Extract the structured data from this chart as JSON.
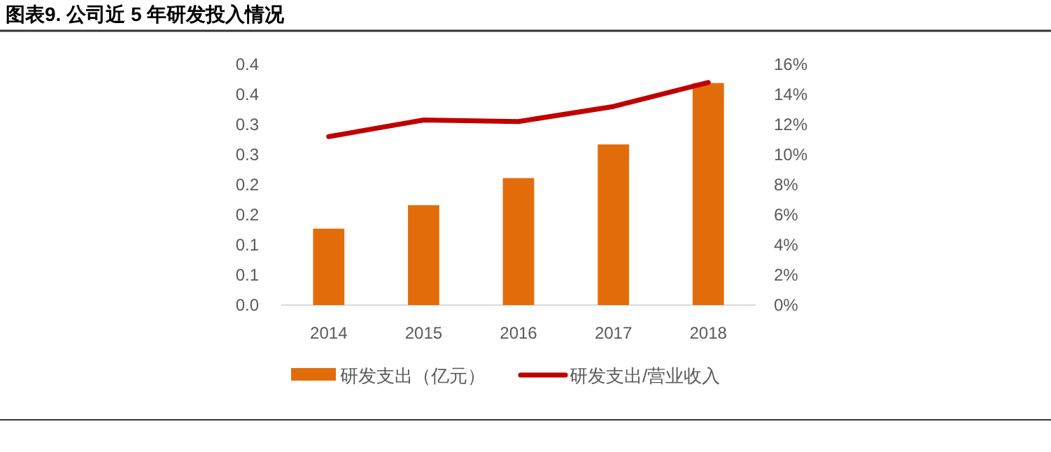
{
  "chart_data": {
    "type": "bar",
    "title": "图表9.    公司近 5 年研发投入情况",
    "categories": [
      "2014",
      "2015",
      "2016",
      "2017",
      "2018"
    ],
    "series": [
      {
        "name": "研发支出（亿元）",
        "color": "#e36c0a",
        "values": [
          0.127,
          0.166,
          0.211,
          0.267,
          0.369
        ]
      },
      {
        "name": "研发支出/营业收入",
        "type": "line",
        "axis": "y2",
        "color": "#c00000",
        "values": [
          11.2,
          12.3,
          12.2,
          13.2,
          14.8
        ]
      }
    ],
    "ylim": [
      0,
      0.4
    ],
    "yticks": [
      {
        "value": 0,
        "label": "0.0"
      },
      {
        "value": 0.05,
        "label": "0.1"
      },
      {
        "value": 0.1,
        "label": "0.1"
      },
      {
        "value": 0.15,
        "label": "0.2"
      },
      {
        "value": 0.2,
        "label": "0.2"
      },
      {
        "value": 0.25,
        "label": "0.3"
      },
      {
        "value": 0.3,
        "label": "0.3"
      },
      {
        "value": 0.35,
        "label": "0.4"
      },
      {
        "value": 0.4,
        "label": "0.4"
      }
    ],
    "y2lim": [
      0,
      16
    ],
    "y2ticks": [
      {
        "value": 0,
        "label": "0%"
      },
      {
        "value": 2,
        "label": "2%"
      },
      {
        "value": 4,
        "label": "4%"
      },
      {
        "value": 6,
        "label": "6%"
      },
      {
        "value": 8,
        "label": "8%"
      },
      {
        "value": 10,
        "label": "10%"
      },
      {
        "value": 12,
        "label": "12%"
      },
      {
        "value": 14,
        "label": "14%"
      },
      {
        "value": 16,
        "label": "16%"
      }
    ],
    "legend": "bottom",
    "grid": false,
    "marker": "none",
    "line_style": "solid"
  }
}
